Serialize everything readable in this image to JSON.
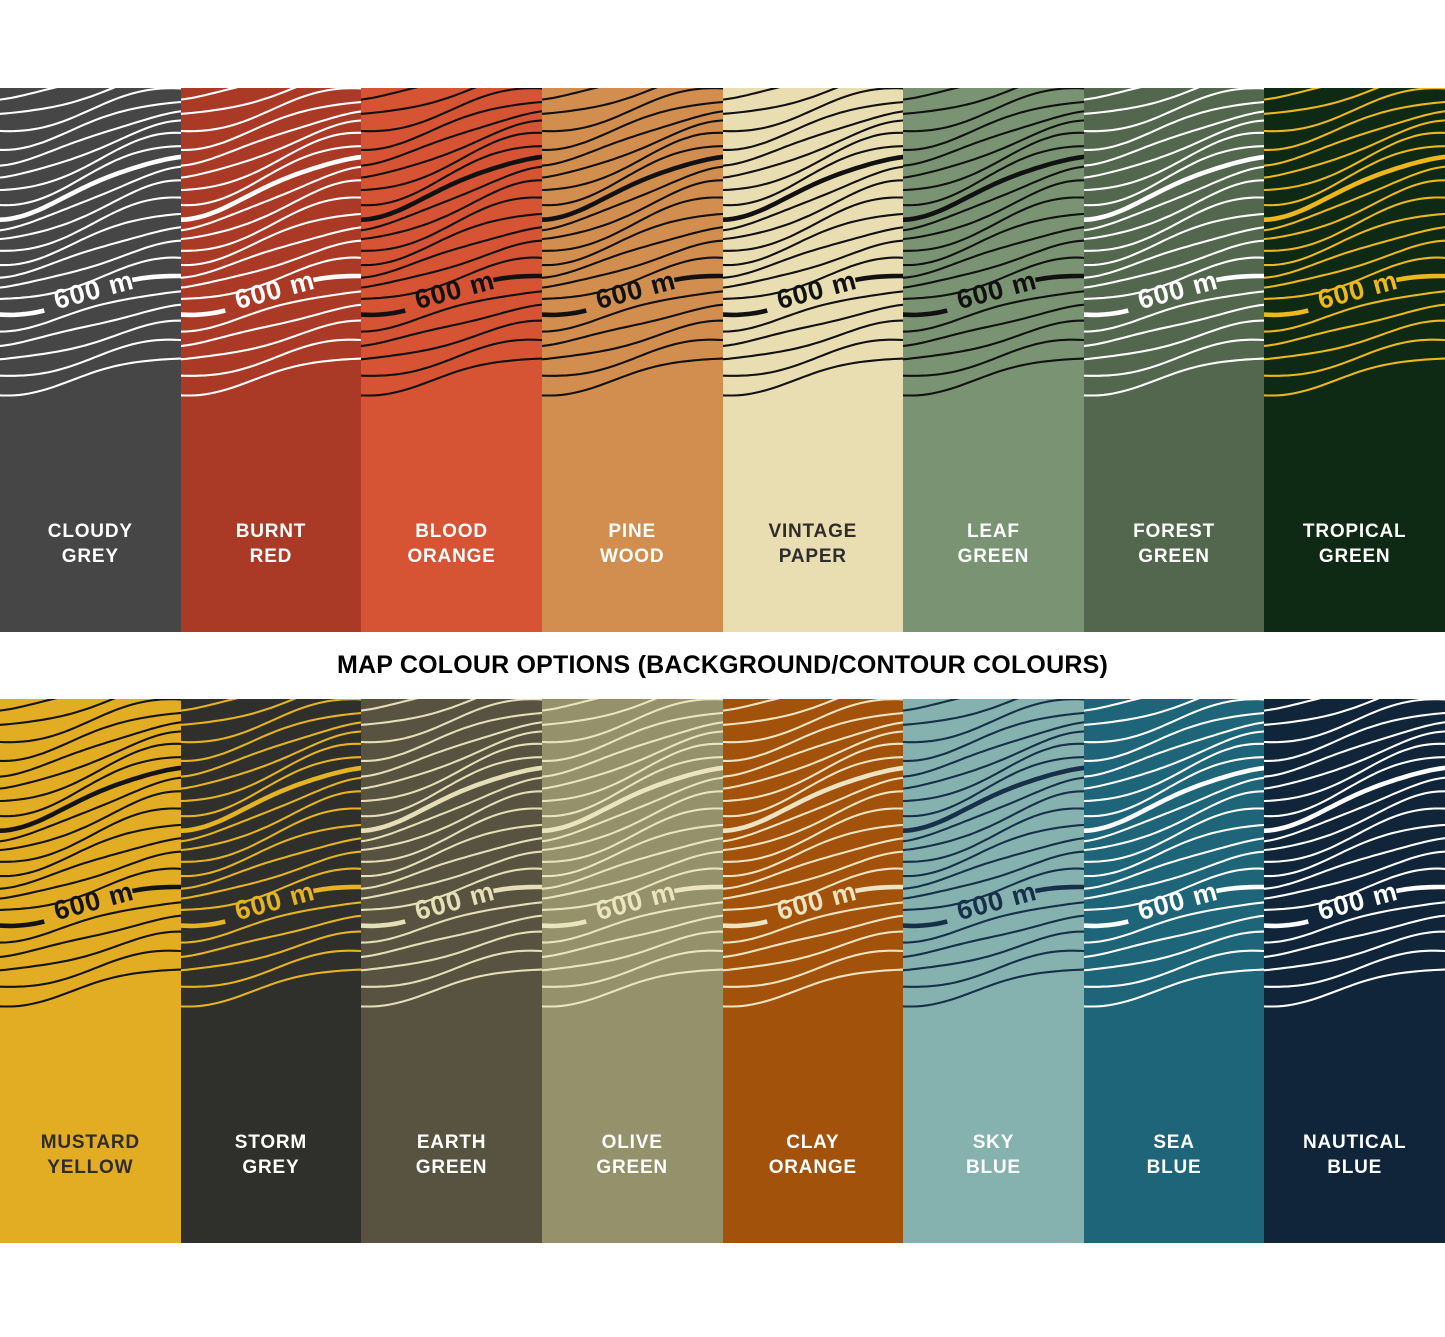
{
  "title": "MAP COLOUR OPTIONS (BACKGROUND/CONTOUR COLOURS)",
  "contour_label": "600 m",
  "rows": [
    {
      "name": "top",
      "panels": [
        {
          "label": "CLOUDY GREY",
          "lines": [
            "CLOUDY",
            "GREY"
          ],
          "background": "#464646",
          "contour": "#ffffff",
          "label_color": "#ffffff"
        },
        {
          "label": "BURNT RED",
          "lines": [
            "BURNT",
            "RED"
          ],
          "background": "#aa3a26",
          "contour": "#ffffff",
          "label_color": "#ffffff"
        },
        {
          "label": "BLOOD ORANGE",
          "lines": [
            "BLOOD",
            "ORANGE"
          ],
          "background": "#d65434",
          "contour": "#111111",
          "label_color": "#ffffff"
        },
        {
          "label": "PINE WOOD",
          "lines": [
            "PINE",
            "WOOD"
          ],
          "background": "#d28e4f",
          "contour": "#111111",
          "label_color": "#ffffff"
        },
        {
          "label": "VINTAGE PAPER",
          "lines": [
            "VINTAGE",
            "PAPER"
          ],
          "background": "#e9ddb2",
          "contour": "#111111",
          "label_color": "#2e2d2b"
        },
        {
          "label": "LEAF GREEN",
          "lines": [
            "LEAF",
            "GREEN"
          ],
          "background": "#7a9473",
          "contour": "#111111",
          "label_color": "#ffffff"
        },
        {
          "label": "FOREST GREEN",
          "lines": [
            "FOREST",
            "GREEN"
          ],
          "background": "#53674e",
          "contour": "#ffffff",
          "label_color": "#ffffff"
        },
        {
          "label": "TROPICAL GREEN",
          "lines": [
            "TROPICAL",
            "GREEN"
          ],
          "background": "#0f2a14",
          "contour": "#eeb71e",
          "label_color": "#ffffff"
        }
      ]
    },
    {
      "name": "bottom",
      "panels": [
        {
          "label": "MUSTARD YELLOW",
          "lines": [
            "MUSTARD",
            "YELLOW"
          ],
          "background": "#e2ad23",
          "contour": "#141414",
          "label_color": "#2e2d28"
        },
        {
          "label": "STORM GREY",
          "lines": [
            "STORM",
            "GREY"
          ],
          "background": "#2f302c",
          "contour": "#e6b322",
          "label_color": "#ffffff"
        },
        {
          "label": "EARTH GREEN",
          "lines": [
            "EARTH",
            "GREEN"
          ],
          "background": "#585340",
          "contour": "#e5deb6",
          "label_color": "#ffffff"
        },
        {
          "label": "OLIVE GREEN",
          "lines": [
            "OLIVE",
            "GREEN"
          ],
          "background": "#95916b",
          "contour": "#ebe4bc",
          "label_color": "#ffffff"
        },
        {
          "label": "CLAY ORANGE",
          "lines": [
            "CLAY",
            "ORANGE"
          ],
          "background": "#a2520b",
          "contour": "#efe4c2",
          "label_color": "#ffffff"
        },
        {
          "label": "SKY BLUE",
          "lines": [
            "SKY",
            "BLUE"
          ],
          "background": "#85b1ae",
          "contour": "#16304a",
          "label_color": "#ffffff"
        },
        {
          "label": "SEA BLUE",
          "lines": [
            "SEA",
            "BLUE"
          ],
          "background": "#1e6579",
          "contour": "#ffffff",
          "label_color": "#ffffff"
        },
        {
          "label": "NAUTICAL BLUE",
          "lines": [
            "NAUTICAL",
            "BLUE"
          ],
          "background": "#10253a",
          "contour": "#ffffff",
          "label_color": "#ffffff"
        }
      ]
    }
  ]
}
